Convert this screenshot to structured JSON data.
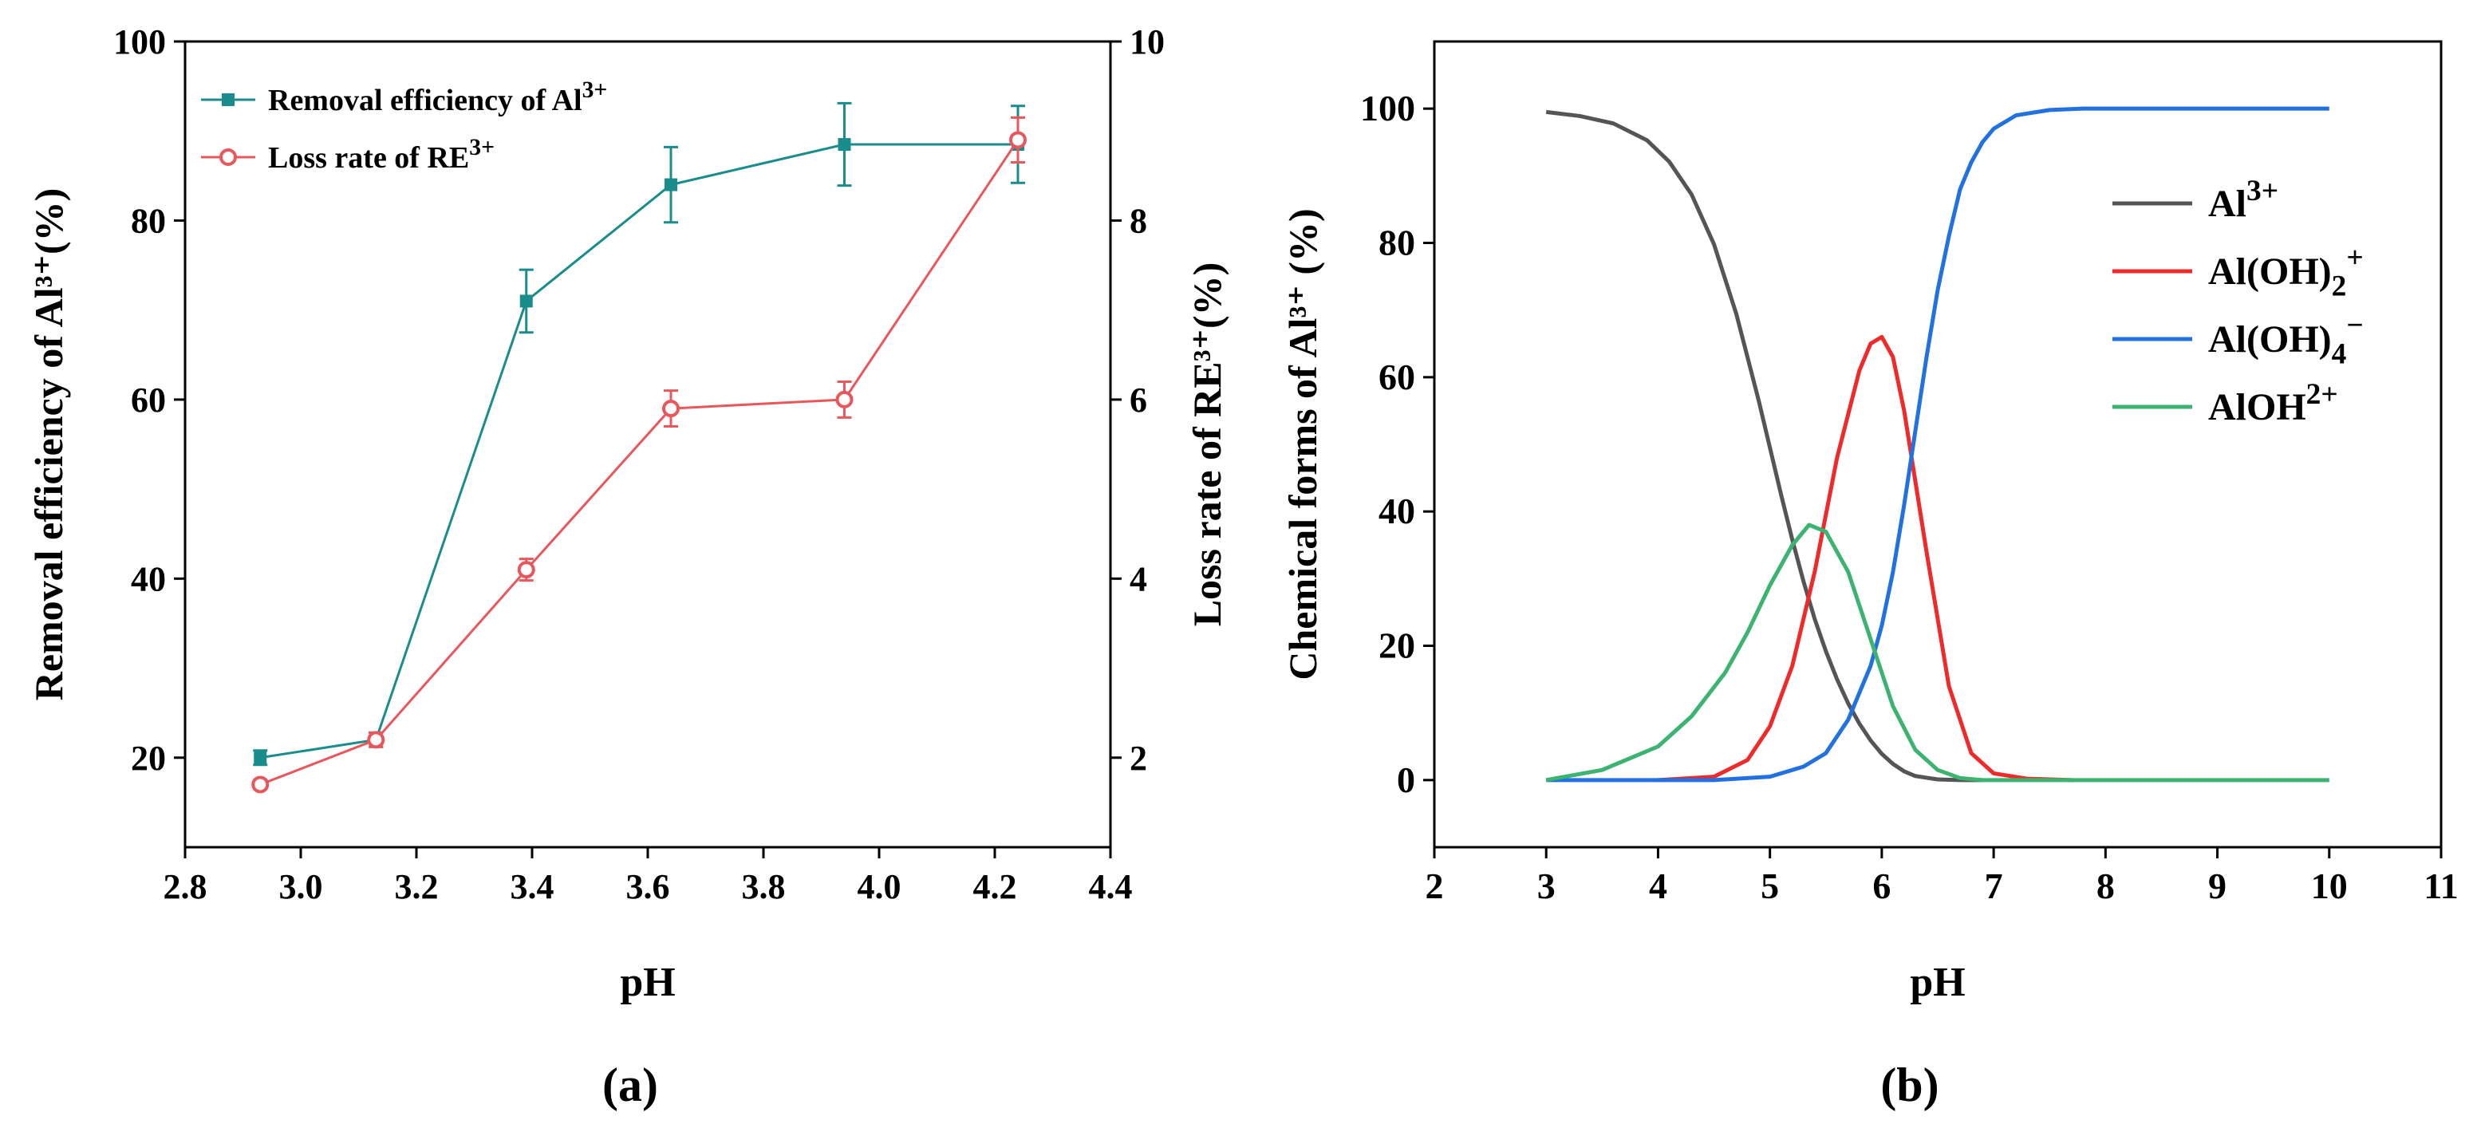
{
  "chart_data": [
    {
      "panel_label": "(a)",
      "type": "line",
      "xlabel": "pH",
      "ylabel_left": "Removal efficiency of Al³⁺(%)",
      "ylabel_right": "Loss rate of RE³⁺(%)",
      "xlim": [
        2.8,
        4.4
      ],
      "ylim_left": [
        10,
        100
      ],
      "ylim_right": [
        1,
        10
      ],
      "x_ticks": [
        "2.8",
        "3.0",
        "3.2",
        "3.4",
        "3.6",
        "3.8",
        "4.0",
        "4.2",
        "4.4"
      ],
      "y_left_ticks": [
        "20",
        "40",
        "60",
        "80",
        "100"
      ],
      "y_right_ticks": [
        "2",
        "4",
        "6",
        "8",
        "10"
      ],
      "legend": {
        "position": "top-left"
      },
      "series": [
        {
          "name": "Removal efficiency of Al3+",
          "legend_base": "Removal efficiency of Al",
          "legend_sup": "3+",
          "axis": "left",
          "color": "#1a8c8c",
          "x": [
            2.93,
            3.13,
            3.39,
            3.64,
            3.94,
            4.24
          ],
          "y": [
            20,
            22,
            71,
            84,
            88.5,
            88.5
          ],
          "err": [
            0.8,
            0.8,
            3.5,
            4.2,
            4.6,
            4.3
          ]
        },
        {
          "name": "Loss rate of RE3+",
          "legend_base": "Loss rate of RE",
          "legend_sup": "3+",
          "axis": "right",
          "color": "#e8575c",
          "x": [
            2.93,
            3.13,
            3.39,
            3.64,
            3.94,
            4.24
          ],
          "y": [
            1.7,
            2.2,
            4.1,
            5.9,
            6.0,
            8.9
          ],
          "err": [
            0.05,
            0.08,
            0.12,
            0.2,
            0.2,
            0.25
          ]
        }
      ]
    },
    {
      "panel_label": "(b)",
      "type": "line",
      "xlabel": "pH",
      "ylabel": "Chemical forms of Al³⁺ (%)",
      "xlim": [
        2,
        11
      ],
      "ylim": [
        -10,
        110
      ],
      "x_ticks": [
        "2",
        "3",
        "4",
        "5",
        "6",
        "7",
        "8",
        "9",
        "10",
        "11"
      ],
      "y_ticks": [
        "0",
        "20",
        "40",
        "60",
        "80",
        "100"
      ],
      "legend": {
        "position": "center-right"
      },
      "series": [
        {
          "name": "Al3+",
          "legend_base": "Al",
          "legend_sub": "",
          "legend_sup": "3+",
          "color": "#555555",
          "x": [
            3.0,
            3.3,
            3.6,
            3.9,
            4.1,
            4.3,
            4.5,
            4.7,
            4.9,
            5.0,
            5.1,
            5.2,
            5.3,
            5.4,
            5.5,
            5.6,
            5.7,
            5.8,
            5.9,
            6.0,
            6.1,
            6.2,
            6.3,
            6.5,
            6.7,
            6.9
          ],
          "y": [
            99.5,
            98.9,
            97.8,
            95.3,
            92.1,
            87.2,
            79.8,
            69.4,
            56.5,
            49.5,
            42.5,
            35.8,
            29.6,
            24.0,
            19.2,
            15.0,
            11.4,
            8.4,
            5.9,
            3.9,
            2.4,
            1.3,
            0.6,
            0.1,
            0,
            0
          ]
        },
        {
          "name": "Al(OH)2+",
          "legend_base": "Al(OH)",
          "legend_sub": "2",
          "legend_sup": "+",
          "color": "#ee2a2a",
          "x": [
            4.0,
            4.5,
            4.8,
            5.0,
            5.2,
            5.4,
            5.6,
            5.8,
            5.9,
            6.0,
            6.1,
            6.2,
            6.4,
            6.6,
            6.8,
            7.0,
            7.3,
            7.7
          ],
          "y": [
            0,
            0.5,
            3,
            8,
            17,
            31,
            48,
            61,
            65,
            66,
            63,
            55,
            34,
            14,
            4,
            1,
            0.2,
            0
          ]
        },
        {
          "name": "Al(OH)4-",
          "legend_base": "Al(OH)",
          "legend_sub": "4",
          "legend_sup": "−",
          "color": "#2171e0",
          "x": [
            3.0,
            4.5,
            5.0,
            5.3,
            5.5,
            5.7,
            5.9,
            6.0,
            6.1,
            6.2,
            6.3,
            6.4,
            6.5,
            6.6,
            6.7,
            6.8,
            6.9,
            7.0,
            7.2,
            7.5,
            7.8,
            10.0
          ],
          "y": [
            0,
            0,
            0.5,
            2,
            4,
            9,
            17,
            23,
            31,
            41,
            52,
            63,
            73,
            81,
            88,
            92,
            95,
            97,
            99,
            99.8,
            100,
            100
          ]
        },
        {
          "name": "AlOH2+",
          "legend_base": "AlOH",
          "legend_sub": "",
          "legend_sup": "2+",
          "color": "#3cb371",
          "x": [
            3.0,
            3.5,
            4.0,
            4.3,
            4.6,
            4.8,
            5.0,
            5.2,
            5.35,
            5.5,
            5.7,
            5.9,
            6.1,
            6.3,
            6.5,
            6.7,
            6.9,
            10.0
          ],
          "y": [
            0,
            1.5,
            5,
            9.5,
            16,
            22,
            29,
            35,
            38,
            37,
            31,
            21,
            11,
            4.5,
            1.5,
            0.3,
            0,
            0
          ]
        }
      ]
    }
  ]
}
